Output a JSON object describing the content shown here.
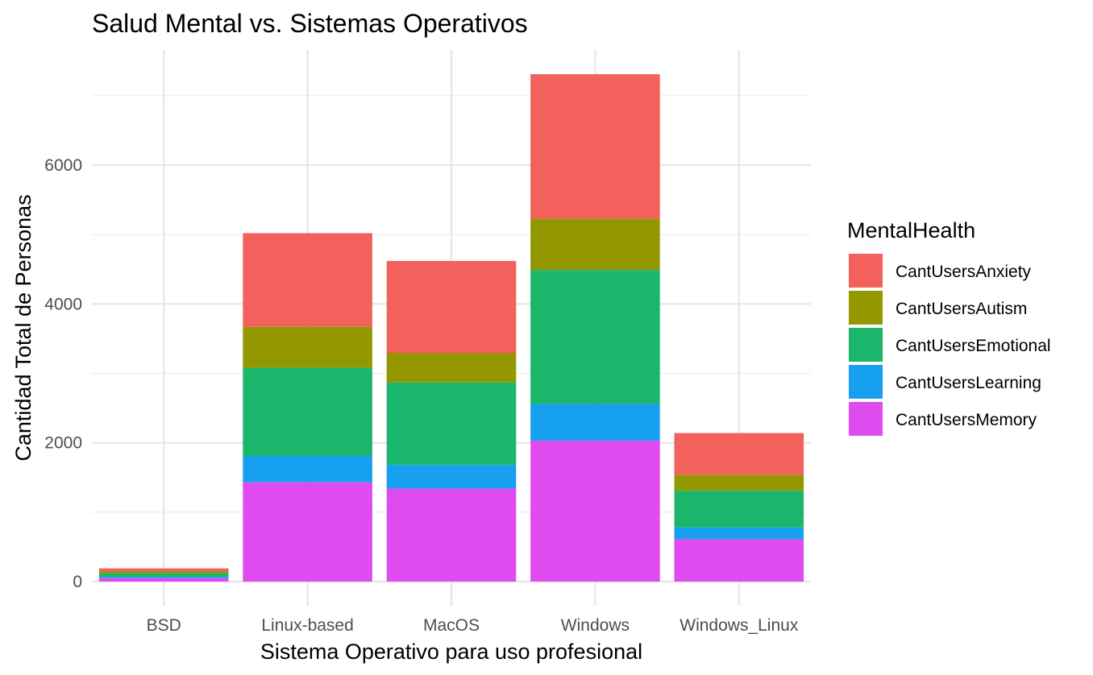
{
  "chart_data": {
    "type": "bar",
    "stacked": true,
    "title": "Salud Mental vs. Sistemas Operativos",
    "xlabel": "Sistema Operativo para uso profesional",
    "ylabel": "Cantidad Total de Personas",
    "categories": [
      "BSD",
      "Linux-based",
      "MacOS",
      "Windows",
      "Windows_Linux"
    ],
    "ylim": [
      0,
      7650
    ],
    "yticks": [
      0,
      2000,
      4000,
      6000
    ],
    "ytick_labels": [
      "0",
      "2000",
      "4000",
      "6000"
    ],
    "grid": true,
    "legend_title": "MentalHealth",
    "legend_position": "right",
    "series": [
      {
        "name": "CantUsersMemory",
        "color": "#E04BF0",
        "values": [
          50,
          1430,
          1340,
          2030,
          610
        ]
      },
      {
        "name": "CantUsersLearning",
        "color": "#17A0F0",
        "values": [
          20,
          380,
          340,
          530,
          170
        ]
      },
      {
        "name": "CantUsersEmotional",
        "color": "#1BB66B",
        "values": [
          50,
          1270,
          1190,
          1930,
          530
        ]
      },
      {
        "name": "CantUsersAutism",
        "color": "#939800",
        "values": [
          25,
          590,
          420,
          740,
          230
        ]
      },
      {
        "name": "CantUsersAnxiety",
        "color": "#F2615C",
        "values": [
          45,
          1350,
          1330,
          2080,
          600
        ]
      }
    ]
  }
}
